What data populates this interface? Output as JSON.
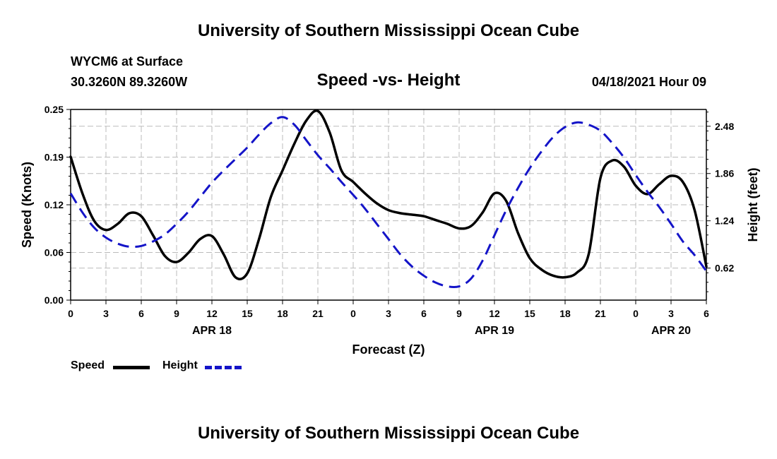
{
  "header": {
    "title": "University of Southern Mississippi Ocean Cube",
    "station": "WYCM6 at Surface",
    "coords": "30.3260N  89.3260W",
    "subtitle": "Speed -vs- Height",
    "datetime": "04/18/2021 Hour 09"
  },
  "footer": {
    "title": "University of Southern Mississippi Ocean Cube"
  },
  "legend": {
    "speed_label": "Speed",
    "height_label": "Height"
  },
  "colors": {
    "speed": "#000000",
    "height": "#1414c8",
    "grid": "#bbbbbb"
  },
  "chart_data": {
    "type": "line",
    "title": "Speed -vs- Height",
    "xlabel": "Forecast (Z)",
    "ylabel": "Speed (Knots)",
    "y2label": "Height (feet)",
    "xlim": [
      0,
      54
    ],
    "ylim": [
      0,
      0.25
    ],
    "y2lim": [
      0.2,
      2.7
    ],
    "yticks": [
      "0.00",
      "0.06",
      "0.12",
      "0.19",
      "0.25"
    ],
    "ytick_values": [
      0,
      0.0625,
      0.125,
      0.1875,
      0.25
    ],
    "y2ticks": [
      "0.62",
      "1.24",
      "1.86",
      "2.48"
    ],
    "y2tick_values": [
      0.62,
      1.24,
      1.86,
      2.48
    ],
    "xtick_values": [
      0,
      3,
      6,
      9,
      12,
      15,
      18,
      21,
      24,
      27,
      30,
      33,
      36,
      39,
      42,
      45,
      48,
      51,
      54
    ],
    "xtick_labels": [
      "0",
      "3",
      "6",
      "9",
      "12",
      "15",
      "18",
      "21",
      "0",
      "3",
      "6",
      "9",
      "12",
      "15",
      "18",
      "21",
      "0",
      "3",
      "6"
    ],
    "day_labels": [
      {
        "label": "APR 18",
        "x": 12
      },
      {
        "label": "APR 19",
        "x": 36
      },
      {
        "label": "APR 20",
        "x": 51
      }
    ],
    "grid": true,
    "series": [
      {
        "name": "Speed",
        "axis": "left",
        "style": "solid",
        "x": [
          0,
          1,
          2,
          3,
          4,
          5,
          6,
          7,
          8,
          9,
          10,
          11,
          12,
          13,
          14,
          15,
          16,
          17,
          18,
          19,
          20,
          21,
          22,
          23,
          24,
          25,
          26,
          27,
          28,
          29,
          30,
          31,
          32,
          33,
          34,
          35,
          36,
          37,
          38,
          39,
          40,
          41,
          42,
          43,
          44,
          45,
          46,
          47,
          48,
          49,
          50,
          51,
          52,
          53,
          54
        ],
        "values": [
          0.188,
          0.14,
          0.104,
          0.092,
          0.1,
          0.114,
          0.11,
          0.085,
          0.058,
          0.05,
          0.062,
          0.08,
          0.084,
          0.06,
          0.03,
          0.035,
          0.08,
          0.135,
          0.17,
          0.205,
          0.235,
          0.248,
          0.22,
          0.17,
          0.155,
          0.14,
          0.127,
          0.118,
          0.114,
          0.112,
          0.11,
          0.105,
          0.1,
          0.094,
          0.097,
          0.115,
          0.14,
          0.13,
          0.088,
          0.055,
          0.04,
          0.032,
          0.03,
          0.036,
          0.06,
          0.16,
          0.183,
          0.175,
          0.15,
          0.139,
          0.152,
          0.163,
          0.155,
          0.118,
          0.044
        ]
      },
      {
        "name": "Height",
        "axis": "right",
        "style": "dashed",
        "x": [
          0,
          1,
          2,
          3,
          4,
          5,
          6,
          7,
          8,
          9,
          10,
          11,
          12,
          13,
          14,
          15,
          16,
          17,
          18,
          19,
          20,
          21,
          22,
          23,
          24,
          25,
          26,
          27,
          28,
          29,
          30,
          31,
          32,
          33,
          34,
          35,
          36,
          37,
          38,
          39,
          40,
          41,
          42,
          43,
          44,
          45,
          46,
          47,
          48,
          49,
          50,
          51,
          52,
          53,
          54
        ],
        "values": [
          1.6,
          1.35,
          1.15,
          1.02,
          0.94,
          0.9,
          0.91,
          0.97,
          1.06,
          1.2,
          1.36,
          1.55,
          1.74,
          1.9,
          2.05,
          2.2,
          2.37,
          2.52,
          2.6,
          2.5,
          2.3,
          2.1,
          1.93,
          1.75,
          1.58,
          1.4,
          1.2,
          1.0,
          0.8,
          0.64,
          0.52,
          0.43,
          0.38,
          0.38,
          0.48,
          0.72,
          1.05,
          1.38,
          1.67,
          1.93,
          2.15,
          2.34,
          2.47,
          2.53,
          2.5,
          2.42,
          2.26,
          2.07,
          1.84,
          1.62,
          1.42,
          1.2,
          0.97,
          0.79,
          0.58
        ]
      }
    ]
  }
}
